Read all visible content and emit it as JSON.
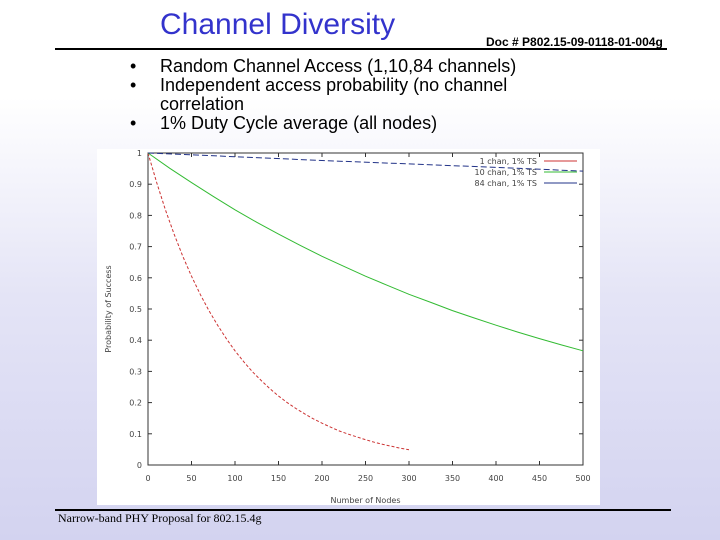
{
  "slide": {
    "title": "Channel Diversity",
    "doc_ref": "Doc # P802.15-09-0118-01-004g",
    "bullets": [
      "Random Channel Access (1,10,84 channels)",
      "Independent access probability (no channel correlation",
      "1% Duty Cycle average (all nodes)"
    ],
    "footer": "Narrow-band PHY Proposal for 802.15.4g"
  },
  "chart_data": {
    "type": "line",
    "title": "",
    "xlabel": "Number of Nodes",
    "ylabel": "Probability of Success",
    "xlim": [
      0,
      500
    ],
    "ylim": [
      0,
      1
    ],
    "x_ticks": [
      "0",
      "50",
      "100",
      "150",
      "200",
      "250",
      "300",
      "350",
      "400",
      "450",
      "500"
    ],
    "y_ticks": [
      "0",
      "0.1",
      "0.2",
      "0.3",
      "0.4",
      "0.5",
      "0.6",
      "0.7",
      "0.8",
      "0.9",
      "1"
    ],
    "grid": false,
    "legend_position": "top-right",
    "series": [
      {
        "name": "1 chan, 1% TS",
        "color": "#cc3333",
        "x": [
          0,
          10,
          20,
          30,
          40,
          50,
          60,
          70,
          80,
          90,
          100,
          110,
          120,
          130,
          140,
          150,
          160,
          170,
          180,
          190,
          200,
          210,
          220,
          230,
          240,
          250,
          260,
          270,
          280,
          290,
          300
        ],
        "y": [
          1.0,
          0.905,
          0.818,
          0.74,
          0.669,
          0.605,
          0.547,
          0.495,
          0.448,
          0.405,
          0.366,
          0.331,
          0.299,
          0.271,
          0.245,
          0.221,
          0.2,
          0.181,
          0.164,
          0.148,
          0.134,
          0.121,
          0.109,
          0.099,
          0.09,
          0.081,
          0.073,
          0.066,
          0.06,
          0.054,
          0.049
        ]
      },
      {
        "name": "10 chan, 1% TS",
        "color": "#33bb33",
        "x": [
          0,
          25,
          50,
          75,
          100,
          125,
          150,
          175,
          200,
          225,
          250,
          275,
          300,
          325,
          350,
          375,
          400,
          425,
          450,
          475,
          500
        ],
        "y": [
          1.0,
          0.951,
          0.905,
          0.861,
          0.818,
          0.778,
          0.74,
          0.704,
          0.669,
          0.637,
          0.605,
          0.576,
          0.547,
          0.521,
          0.495,
          0.471,
          0.448,
          0.426,
          0.405,
          0.385,
          0.366
        ]
      },
      {
        "name": "84 chan, 1% TS",
        "color": "#223388",
        "x": [
          0,
          100,
          200,
          300,
          400,
          500
        ],
        "y": [
          1.0,
          0.988,
          0.976,
          0.965,
          0.954,
          0.942
        ]
      }
    ]
  }
}
